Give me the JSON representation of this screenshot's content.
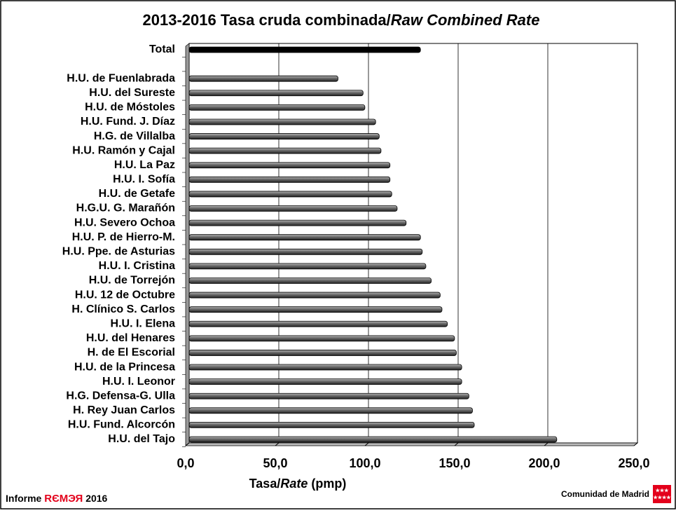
{
  "chart_data": {
    "type": "hbar",
    "title": [
      "2013-2016 Tasa cruda combinada/",
      "Raw Combined  Rate"
    ],
    "x_label": [
      "Tasa/",
      "Rate",
      " (pmp)"
    ],
    "categories": [
      "Total",
      null,
      "H.U. de Fuenlabrada",
      "H.U. del Sureste",
      "H.U. de Móstoles",
      "H.U. Fund. J. Díaz",
      "H.G. de Villalba",
      "H.U. Ramón y Cajal",
      "H.U. La Paz",
      "H.U. I. Sofía",
      "H.U. de Getafe",
      "H.G.U. G. Marañón",
      "H.U. Severo Ochoa",
      "H.U. P. de Hierro-M.",
      "H.U. Ppe. de Asturias",
      "H.U. I. Cristina",
      "H.U. de Torrejón",
      "H.U. 12 de Octubre",
      "H. Clínico S. Carlos",
      "H.U. I. Elena",
      "H.U. del Henares",
      "H. de El Escorial",
      "H.U. de la Princesa",
      "H.U. I. Leonor",
      "H.G. Defensa-G. Ulla",
      "H. Rey Juan Carlos",
      "H.U. Fund. Alcorcón",
      "H.U. del Tajo"
    ],
    "values": [
      129,
      null,
      83,
      97,
      98,
      104,
      106,
      107,
      112,
      112,
      113,
      116,
      121,
      129,
      130,
      132,
      135,
      140,
      141,
      144,
      148,
      149,
      152,
      152,
      156,
      158,
      159,
      205
    ],
    "colors": [
      "#000000",
      null,
      "#555555",
      "#555555",
      "#555555",
      "#555555",
      "#555555",
      "#555555",
      "#555555",
      "#555555",
      "#555555",
      "#555555",
      "#555555",
      "#555555",
      "#555555",
      "#555555",
      "#555555",
      "#555555",
      "#555555",
      "#555555",
      "#555555",
      "#555555",
      "#555555",
      "#555555",
      "#555555",
      "#555555",
      "#555555",
      "#555555"
    ],
    "xlim": [
      0,
      250
    ],
    "xticks": [
      {
        "value": 0,
        "label": "0,0"
      },
      {
        "value": 50,
        "label": "50,0"
      },
      {
        "value": 100,
        "label": "100,0"
      },
      {
        "value": 150,
        "label": "150,0"
      },
      {
        "value": 200,
        "label": "200,0"
      },
      {
        "value": 250,
        "label": "250,0"
      }
    ],
    "grid": true,
    "footer": [
      "Informe",
      "RЄМЭЯ",
      "2016"
    ],
    "logo_text": "Comunidad de Madrid"
  }
}
